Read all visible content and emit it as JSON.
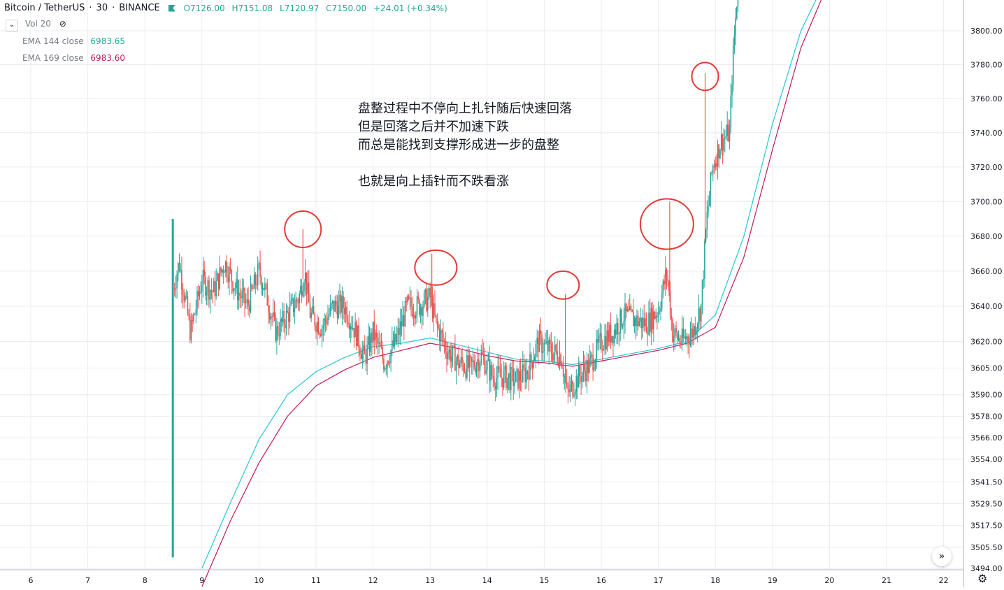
{
  "header": {
    "symbol": "Bitcoin / TetherUS",
    "interval": "30",
    "exchange": "BINANCE",
    "open": "O7126.00",
    "high": "H7151.08",
    "low": "L7120.97",
    "close": "C7150.00",
    "change": "+24.01 (+0.34%)"
  },
  "indicators": {
    "vol_label": "Vol 20",
    "ema144_label": "EMA 144 close",
    "ema144_value": "6983.65",
    "ema169_label": "EMA 169 close",
    "ema169_value": "6983.60"
  },
  "annotation": {
    "line1": "盘整过程中不停向上扎针随后快速回落",
    "line2": "但是回落之后并不加速下跌",
    "line3": "而总是能找到支撑形成进一步的盘整",
    "line4": "也就是向上插针而不跌看涨"
  },
  "colors": {
    "up": "#26a69a",
    "down": "#ef5350",
    "ema144": "#26c6da",
    "ema169": "#c2185b",
    "circle": "#e53935",
    "grid": "#e9ecf2"
  },
  "chart_data": {
    "type": "candlestick",
    "scale": "log",
    "ylim": [
      3494,
      3830
    ],
    "y_ticks": [
      3800,
      3780,
      3760,
      3740,
      3720,
      3700,
      3680,
      3660,
      3640,
      3620,
      3605,
      3590,
      3578,
      3566,
      3554,
      3541.5,
      3529.5,
      3517.5,
      3505.5,
      3494
    ],
    "y_tick_labels": [
      "3800.00",
      "3780.00",
      "3760.00",
      "3740.00",
      "3720.00",
      "3700.00",
      "3680.00",
      "3660.00",
      "3640.00",
      "3620.00",
      "3605.00",
      "3590.00",
      "3578.00",
      "3566.00",
      "3554.00",
      "3541.50",
      "3529.50",
      "3517.50",
      "3505.50",
      "3494.00"
    ],
    "x_ticks": [
      6,
      7,
      8,
      9,
      10,
      11,
      12,
      13,
      14,
      15,
      16,
      17,
      18,
      19,
      20,
      21,
      22
    ],
    "x_tick_labels": [
      "6",
      "7",
      "8",
      "9",
      "10",
      "11",
      "12",
      "13",
      "14",
      "15",
      "16",
      "17",
      "18",
      "19",
      "20",
      "21",
      "22"
    ],
    "x_unit": "day",
    "price_path": [
      [
        8.48,
        3500
      ],
      [
        8.49,
        3735
      ],
      [
        8.5,
        3650
      ],
      [
        8.6,
        3665
      ],
      [
        8.8,
        3625
      ],
      [
        9.0,
        3655
      ],
      [
        9.2,
        3648
      ],
      [
        9.4,
        3665
      ],
      [
        9.6,
        3650
      ],
      [
        9.8,
        3640
      ],
      [
        10.0,
        3660
      ],
      [
        10.1,
        3650
      ],
      [
        10.3,
        3625
      ],
      [
        10.5,
        3635
      ],
      [
        10.7,
        3645
      ],
      [
        10.8,
        3660
      ],
      [
        10.9,
        3635
      ],
      [
        11.1,
        3628
      ],
      [
        11.3,
        3640
      ],
      [
        11.5,
        3640
      ],
      [
        11.7,
        3625
      ],
      [
        11.85,
        3610
      ],
      [
        12.0,
        3625
      ],
      [
        12.2,
        3608
      ],
      [
        12.4,
        3620
      ],
      [
        12.6,
        3640
      ],
      [
        12.8,
        3640
      ],
      [
        13.0,
        3645
      ],
      [
        13.1,
        3630
      ],
      [
        13.3,
        3615
      ],
      [
        13.5,
        3608
      ],
      [
        13.7,
        3605
      ],
      [
        13.9,
        3612
      ],
      [
        14.1,
        3600
      ],
      [
        14.3,
        3600
      ],
      [
        14.5,
        3598
      ],
      [
        14.7,
        3603
      ],
      [
        14.9,
        3620
      ],
      [
        15.1,
        3615
      ],
      [
        15.3,
        3612
      ],
      [
        15.4,
        3590
      ],
      [
        15.6,
        3600
      ],
      [
        15.8,
        3607
      ],
      [
        16.0,
        3620
      ],
      [
        16.2,
        3625
      ],
      [
        16.4,
        3635
      ],
      [
        16.6,
        3632
      ],
      [
        16.8,
        3630
      ],
      [
        17.0,
        3638
      ],
      [
        17.15,
        3660
      ],
      [
        17.25,
        3625
      ],
      [
        17.4,
        3620
      ],
      [
        17.6,
        3625
      ],
      [
        17.75,
        3640
      ],
      [
        17.85,
        3690
      ],
      [
        17.95,
        3720
      ],
      [
        18.1,
        3735
      ],
      [
        18.25,
        3740
      ],
      [
        18.3,
        3780
      ],
      [
        18.4,
        3830
      ]
    ],
    "spikes": [
      {
        "day": 8.49,
        "high": 3735
      },
      {
        "day": 10.77,
        "high": 3684
      },
      {
        "day": 13.03,
        "high": 3670
      },
      {
        "day": 15.37,
        "high": 3647
      },
      {
        "day": 17.2,
        "high": 3700
      },
      {
        "day": 17.82,
        "high": 3775
      }
    ],
    "ema144": [
      [
        9.0,
        3494
      ],
      [
        9.5,
        3530
      ],
      [
        10.0,
        3565
      ],
      [
        10.5,
        3590
      ],
      [
        11.0,
        3603
      ],
      [
        11.5,
        3611
      ],
      [
        12.0,
        3617
      ],
      [
        12.5,
        3619
      ],
      [
        13.0,
        3622
      ],
      [
        13.5,
        3618
      ],
      [
        14.0,
        3614
      ],
      [
        14.5,
        3610
      ],
      [
        15.0,
        3609
      ],
      [
        15.5,
        3607
      ],
      [
        16.0,
        3610
      ],
      [
        16.5,
        3613
      ],
      [
        17.0,
        3616
      ],
      [
        17.5,
        3620
      ],
      [
        18.0,
        3635
      ],
      [
        18.5,
        3680
      ],
      [
        19.0,
        3745
      ],
      [
        19.5,
        3800
      ],
      [
        20.0,
        3835
      ]
    ],
    "ema169": [
      [
        9.0,
        3484
      ],
      [
        9.5,
        3520
      ],
      [
        10.0,
        3552
      ],
      [
        10.5,
        3578
      ],
      [
        11.0,
        3595
      ],
      [
        11.5,
        3604
      ],
      [
        12.0,
        3611
      ],
      [
        12.5,
        3615
      ],
      [
        13.0,
        3619
      ],
      [
        13.5,
        3616
      ],
      [
        14.0,
        3612
      ],
      [
        14.5,
        3609
      ],
      [
        15.0,
        3608
      ],
      [
        15.5,
        3606
      ],
      [
        16.0,
        3609
      ],
      [
        16.5,
        3612
      ],
      [
        17.0,
        3615
      ],
      [
        17.5,
        3619
      ],
      [
        18.0,
        3628
      ],
      [
        18.5,
        3668
      ],
      [
        19.0,
        3730
      ],
      [
        19.5,
        3790
      ],
      [
        20.0,
        3830
      ]
    ],
    "circled_spikes": [
      {
        "day": 10.77,
        "price": 3684
      },
      {
        "day": 13.1,
        "price": 3662
      },
      {
        "day": 15.33,
        "price": 3652
      },
      {
        "day": 17.15,
        "price": 3687
      },
      {
        "day": 17.82,
        "price": 3773
      }
    ]
  },
  "controls": {
    "scroll_label": "»",
    "settings_label": "⚙"
  }
}
